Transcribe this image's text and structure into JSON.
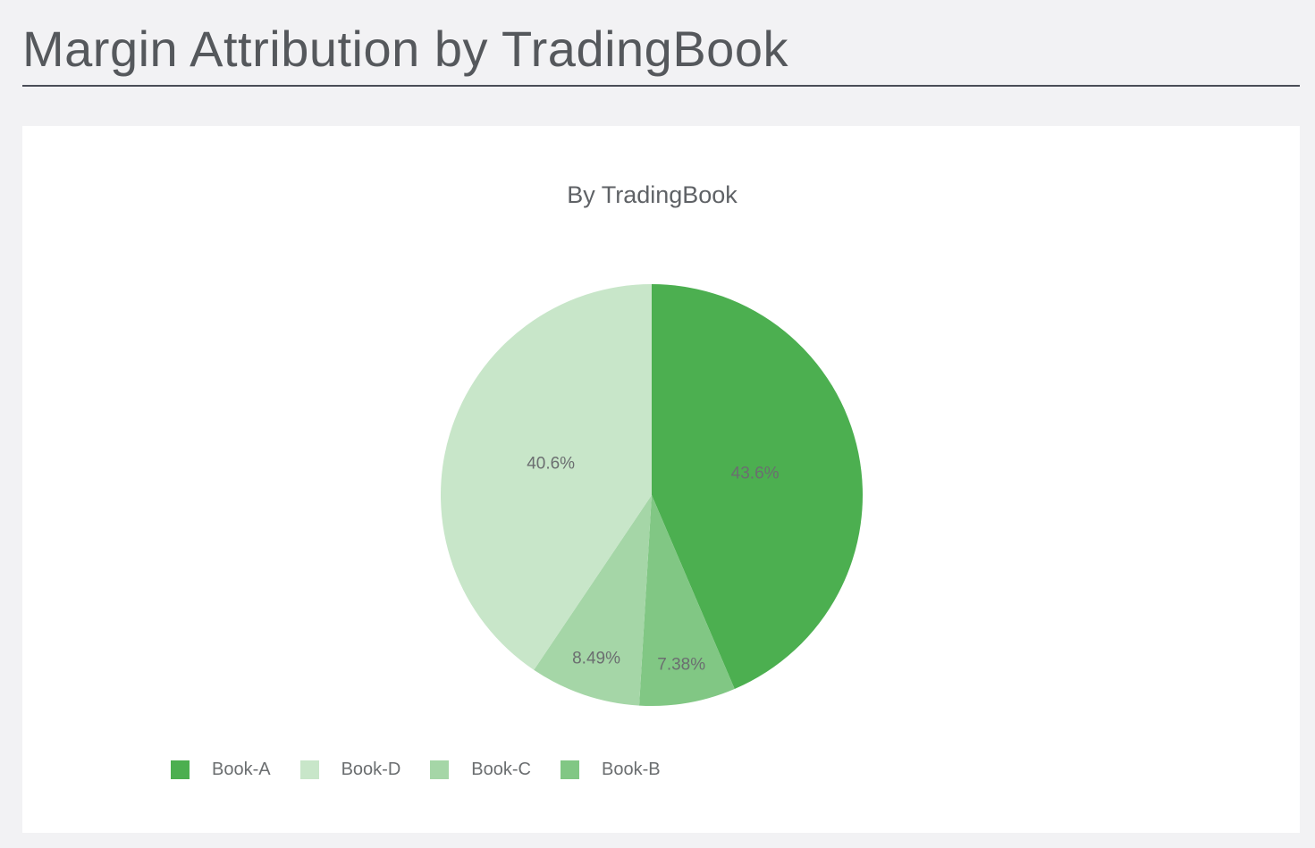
{
  "page": {
    "title": "Margin Attribution by TradingBook"
  },
  "chart_data": {
    "type": "pie",
    "title": "By TradingBook",
    "legend_position": "bottom-left",
    "slices": [
      {
        "label": "Book-A",
        "value": 43.6,
        "display": "43.6%",
        "color": "#4caf50"
      },
      {
        "label": "Book-B",
        "value": 7.38,
        "display": "7.38%",
        "color": "#81c784"
      },
      {
        "label": "Book-C",
        "value": 8.49,
        "display": "8.49%",
        "color": "#a5d6a7"
      },
      {
        "label": "Book-D",
        "value": 40.6,
        "display": "40.6%",
        "color": "#c8e6c9"
      }
    ],
    "legend": [
      {
        "label": "Book-A",
        "color": "#4caf50"
      },
      {
        "label": "Book-D",
        "color": "#c8e6c9"
      },
      {
        "label": "Book-C",
        "color": "#a5d6a7"
      },
      {
        "label": "Book-B",
        "color": "#81c784"
      }
    ]
  }
}
